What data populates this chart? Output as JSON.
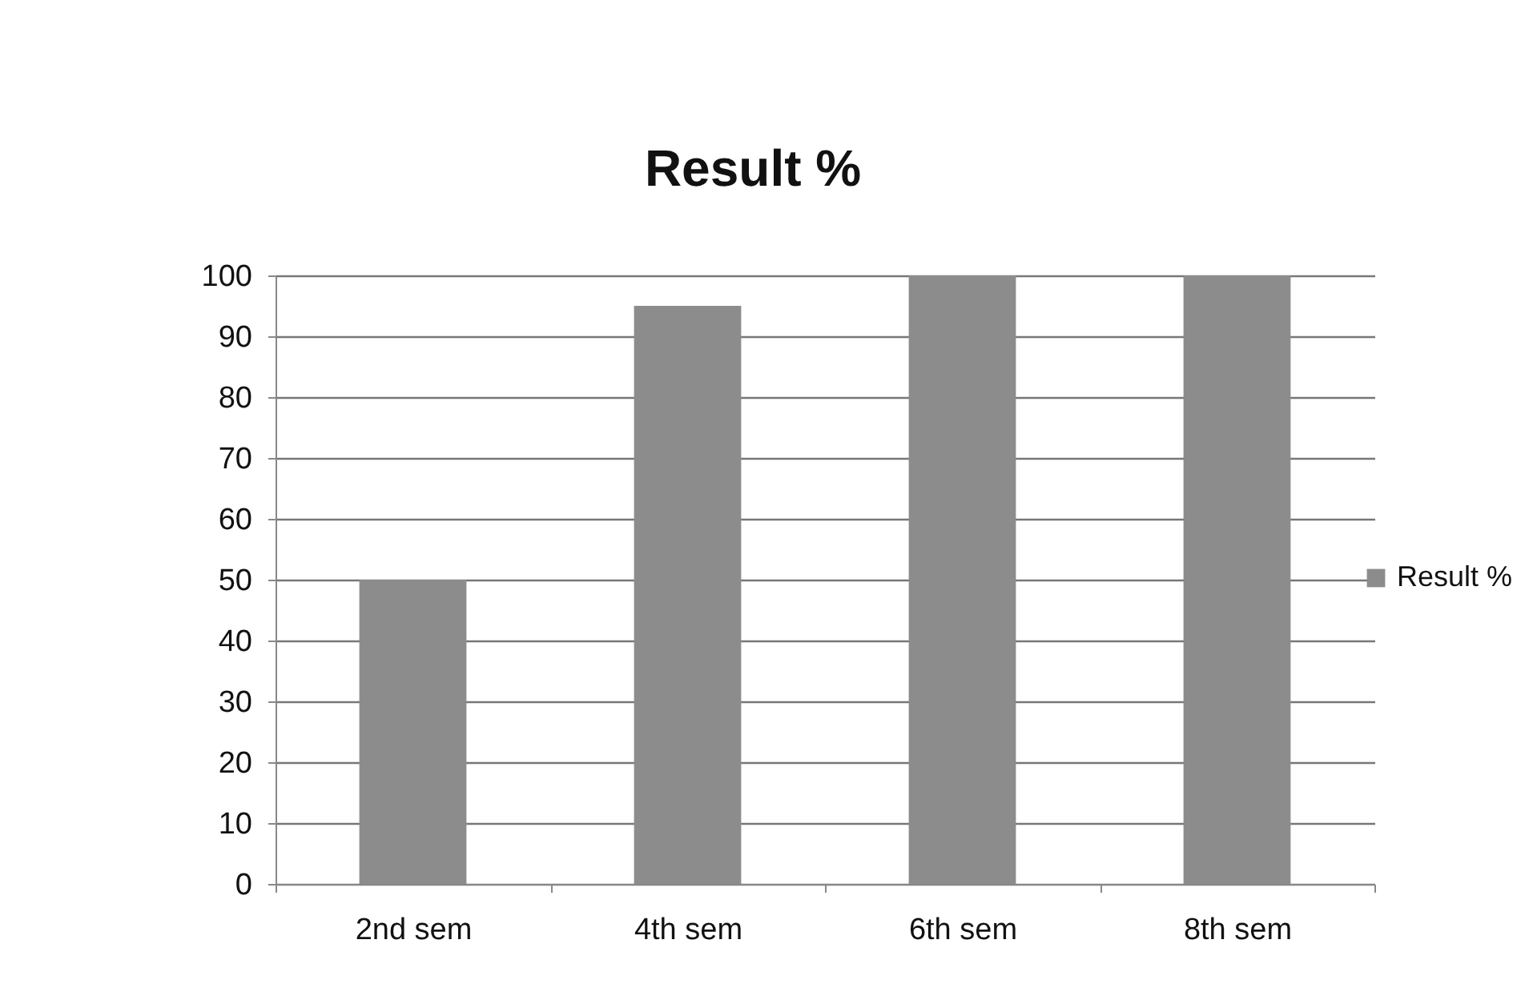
{
  "chart_data": {
    "type": "bar",
    "title": "Result %",
    "categories": [
      "2nd sem",
      "4th sem",
      "6th sem",
      "8th sem"
    ],
    "series": [
      {
        "name": "Result %",
        "color": "#8c8c8c",
        "values": [
          50,
          95,
          100,
          100
        ]
      }
    ],
    "ylim": [
      0,
      100
    ],
    "yticks": [
      0,
      10,
      20,
      30,
      40,
      50,
      60,
      70,
      80,
      90,
      100
    ],
    "grid": "y",
    "legend": "right"
  }
}
